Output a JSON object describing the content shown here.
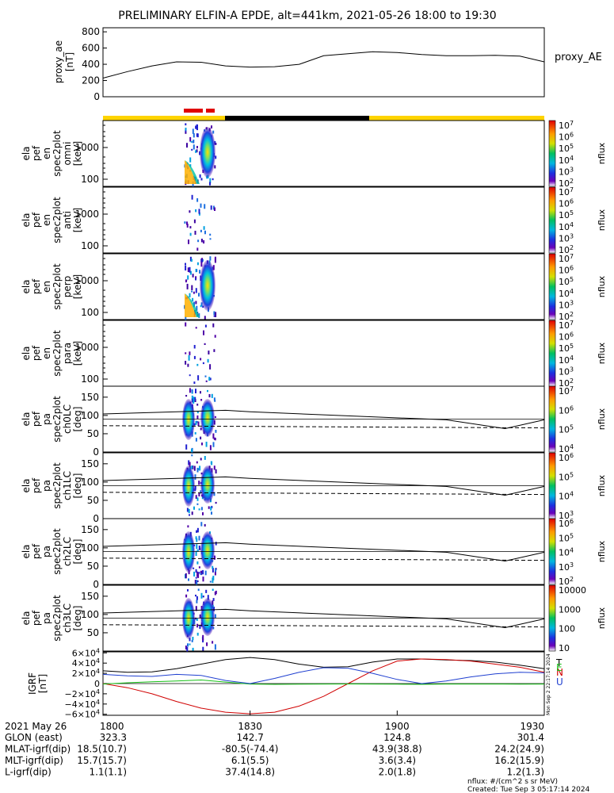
{
  "title": "PRELIMINARY ELFIN-A EPDE, alt=441km, 2021-05-26 18:00 to 19:30",
  "colors": {
    "orbit_bar_yellow": "#ffd400",
    "orbit_bar_black": "#000000",
    "science_zone_red": "#e00000",
    "bt_red": "#d00000",
    "bt_blue": "#1f3fd0",
    "bt_green": "#16c016"
  },
  "time_axis": {
    "ticks": [
      "1800",
      "1830",
      "1900",
      "1930"
    ],
    "date_label": "2021 May 26"
  },
  "ephemeris": [
    {
      "label": "GLON (east)",
      "values": [
        "323.3",
        "142.7",
        "124.8",
        "301.4"
      ]
    },
    {
      "label": "MLAT-igrf(dip)",
      "values": [
        "18.5(10.7)",
        "-80.5(-74.4)",
        "43.9(38.8)",
        "24.2(24.9)"
      ]
    },
    {
      "label": "MLT-igrf(dip)",
      "values": [
        "15.7(15.7)",
        "6.1(5.5)",
        "3.6(3.4)",
        "16.2(15.9)"
      ]
    },
    {
      "label": "L-igrf(dip)",
      "values": [
        "1.1(1.1)",
        "37.4(14.8)",
        "2.0(1.8)",
        "1.2(1.3)"
      ]
    }
  ],
  "footer": {
    "units": "nflux: #/(cm^2 s sr MeV)",
    "created": "Created: Tue Sep  3 05:17:14 2024"
  },
  "bfield_side_stamp": "Mon Sep  2 22:17:14 2024",
  "chart_data": [
    {
      "type": "line",
      "ylabel": [
        "proxy_ae",
        "[nT]"
      ],
      "yticks": [
        "800",
        "600",
        "400",
        "200",
        "0"
      ],
      "ylim": [
        0,
        850
      ],
      "xlim": [
        0,
        90
      ],
      "series": [
        {
          "name": "proxy_AE",
          "x": [
            0,
            5,
            10,
            15,
            20,
            25,
            30,
            35,
            40,
            45,
            50,
            55,
            60,
            65,
            70,
            75,
            80,
            85,
            90
          ],
          "y": [
            230,
            310,
            380,
            430,
            425,
            380,
            365,
            370,
            400,
            505,
            530,
            555,
            545,
            520,
            505,
            505,
            510,
            500,
            430
          ]
        }
      ]
    },
    {
      "type": "heatmap",
      "ylabel": [
        "ela",
        "pef",
        "en",
        "spec2plot",
        "omni",
        "[keV]"
      ],
      "yticks": [
        "1000",
        "100"
      ],
      "colorbar_label": "nflux",
      "colorbar_ticks": [
        "10^7",
        "10^6",
        "10^5",
        "10^4",
        "10^3",
        "10^2"
      ]
    },
    {
      "type": "heatmap",
      "ylabel": [
        "ela",
        "pef",
        "en",
        "spec2plot",
        "anti",
        "[keV]"
      ],
      "yticks": [
        "1000",
        "100"
      ],
      "colorbar_label": "nflux",
      "colorbar_ticks": [
        "10^7",
        "10^6",
        "10^5",
        "10^4",
        "10^3",
        "10^2"
      ]
    },
    {
      "type": "heatmap",
      "ylabel": [
        "ela",
        "pef",
        "en",
        "spec2plot",
        "perp",
        "[keV]"
      ],
      "yticks": [
        "1000",
        "100"
      ],
      "colorbar_label": "nflux",
      "colorbar_ticks": [
        "10^7",
        "10^6",
        "10^5",
        "10^4",
        "10^3",
        "10^2"
      ]
    },
    {
      "type": "heatmap",
      "ylabel": [
        "ela",
        "pef",
        "en",
        "spec2plot",
        "para",
        "[keV]"
      ],
      "yticks": [
        "1000",
        "100"
      ],
      "colorbar_label": "nflux",
      "colorbar_ticks": [
        "10^7",
        "10^6",
        "10^5",
        "10^4",
        "10^3",
        "10^2"
      ]
    },
    {
      "type": "heatmap",
      "ylabel": [
        "ela",
        "pef",
        "pa",
        "spec2plot",
        "ch0LC",
        "[deg]"
      ],
      "yticks": [
        "150",
        "100",
        "50",
        "0"
      ],
      "ylim": [
        0,
        180
      ],
      "colorbar_label": "nflux",
      "colorbar_ticks": [
        "10^7",
        "10^6",
        "10^5",
        "10^4"
      ]
    },
    {
      "type": "heatmap",
      "ylabel": [
        "ela",
        "pef",
        "pa",
        "spec2plot",
        "ch1LC",
        "[deg]"
      ],
      "yticks": [
        "150",
        "100",
        "50",
        "0"
      ],
      "ylim": [
        0,
        180
      ],
      "colorbar_label": "nflux",
      "colorbar_ticks": [
        "10^6",
        "10^5",
        "10^4",
        "10^3"
      ]
    },
    {
      "type": "heatmap",
      "ylabel": [
        "ela",
        "pef",
        "pa",
        "spec2plot",
        "ch2LC",
        "[deg]"
      ],
      "yticks": [
        "150",
        "100",
        "50",
        "0"
      ],
      "ylim": [
        0,
        180
      ],
      "colorbar_label": "nflux",
      "colorbar_ticks": [
        "10^6",
        "10^5",
        "10^4",
        "10^3",
        "10^2"
      ]
    },
    {
      "type": "heatmap",
      "ylabel": [
        "ela",
        "pef",
        "pa",
        "spec2plot",
        "ch3LC",
        "[deg]"
      ],
      "yticks": [
        "150",
        "100",
        "50"
      ],
      "ylim": [
        0,
        180
      ],
      "colorbar_label": "nflux",
      "colorbar_ticks": [
        "10000",
        "1000",
        "100",
        "10"
      ]
    },
    {
      "type": "line",
      "ylabel": [
        "IGRF",
        "[nT]"
      ],
      "yticks": [
        "6×10^4",
        "4×10^4",
        "2×10^4",
        "0",
        "−2×10^4",
        "−4×10^4",
        "−6×10^4"
      ],
      "ylim": [
        -62000,
        62000
      ],
      "xlim": [
        0,
        90
      ],
      "series": [
        {
          "name": "T",
          "color": "#000000",
          "x": [
            0,
            5,
            10,
            15,
            20,
            25,
            30,
            35,
            40,
            45,
            50,
            55,
            60,
            65,
            70,
            75,
            80,
            85,
            90
          ],
          "y": [
            25000,
            22000,
            23000,
            29000,
            38000,
            47000,
            51000,
            47000,
            38000,
            32000,
            33000,
            42000,
            48000,
            48000,
            46000,
            45000,
            42000,
            36000,
            29000
          ]
        },
        {
          "name": "N",
          "color": "#d00000",
          "x": [
            0,
            5,
            10,
            15,
            20,
            25,
            30,
            35,
            40,
            45,
            50,
            55,
            60,
            65,
            70,
            75,
            80,
            85,
            90
          ],
          "y": [
            0,
            -8000,
            -20000,
            -35000,
            -48000,
            -56000,
            -59000,
            -56000,
            -44000,
            -25000,
            0,
            25000,
            44000,
            48000,
            47000,
            44000,
            38000,
            32000,
            22000
          ]
        },
        {
          "name": "E",
          "color": "#16c016",
          "x": [
            0,
            5,
            10,
            15,
            20,
            25,
            30,
            35,
            40,
            45,
            50,
            55,
            60,
            65,
            70,
            75,
            80,
            85,
            90
          ],
          "y": [
            -1000,
            1500,
            3500,
            5000,
            7000,
            3000,
            -1000,
            -1500,
            -1200,
            -1000,
            -800,
            -1000,
            -1200,
            -1500,
            -1000,
            -1000,
            -1000,
            -1200,
            -1000
          ]
        },
        {
          "name": "U",
          "color": "#1f3fd0",
          "x": [
            0,
            5,
            10,
            15,
            20,
            25,
            30,
            35,
            40,
            45,
            50,
            55,
            60,
            65,
            70,
            75,
            80,
            85,
            90
          ],
          "y": [
            18000,
            15000,
            14000,
            18000,
            16000,
            6000,
            0,
            10000,
            22000,
            31000,
            30000,
            20000,
            8000,
            0,
            5000,
            13000,
            19000,
            22000,
            21000
          ]
        }
      ]
    }
  ]
}
